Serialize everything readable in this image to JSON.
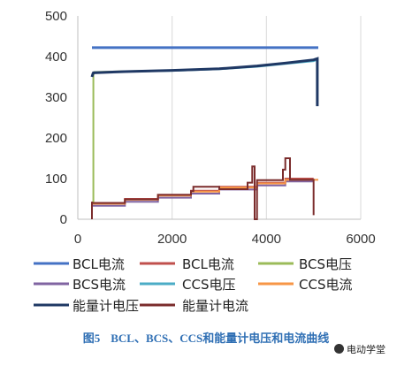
{
  "chart_data": {
    "type": "line",
    "title": "",
    "xlabel": "",
    "ylabel": "",
    "xlim": [
      0,
      6000
    ],
    "ylim": [
      0,
      500
    ],
    "xticks": [
      0,
      2000,
      4000,
      6000
    ],
    "yticks": [
      0,
      100,
      200,
      300,
      400,
      500
    ],
    "grid": "vertical lines",
    "legend_position": "bottom",
    "series": [
      {
        "name": "BCL电流",
        "color": "#4472c4",
        "width": 3,
        "x": [
          300,
          5100
        ],
        "y": [
          422,
          422
        ]
      },
      {
        "name": "BCL电流",
        "color": "#c0504d",
        "width": 2,
        "x": [
          300,
          1000,
          1000,
          1700,
          1700,
          2400,
          2400,
          3000,
          3000,
          3800,
          3800,
          4400,
          4400,
          5000
        ],
        "y": [
          40,
          40,
          50,
          50,
          60,
          60,
          70,
          70,
          80,
          80,
          90,
          90,
          100,
          100
        ]
      },
      {
        "name": "BCS电压",
        "color": "#9bbb59",
        "width": 2,
        "x": [
          330,
          330,
          350,
          1000,
          2000,
          3000,
          3800,
          4400,
          5000,
          5100
        ],
        "y": [
          40,
          355,
          362,
          364,
          366,
          370,
          376,
          383,
          390,
          394
        ]
      },
      {
        "name": "BCS电流",
        "color": "#8064a2",
        "width": 2,
        "x": [
          300,
          1000,
          1000,
          1700,
          1700,
          2400,
          2400,
          3000,
          3000,
          3800,
          3800,
          4400,
          4400,
          5000
        ],
        "y": [
          33,
          33,
          43,
          43,
          53,
          53,
          63,
          63,
          73,
          73,
          83,
          83,
          93,
          93
        ]
      },
      {
        "name": "CCS电压",
        "color": "#4bacc6",
        "width": 2,
        "x": [
          350,
          1000,
          2000,
          3000,
          3800,
          4400,
          5000,
          5100
        ],
        "y": [
          361,
          363,
          365,
          369,
          375,
          382,
          389,
          393
        ]
      },
      {
        "name": "CCS电流",
        "color": "#f79646",
        "width": 2,
        "x": [
          300,
          1000,
          1000,
          1700,
          1700,
          2400,
          2400,
          3000,
          3000,
          3800,
          3800,
          4400,
          4400,
          5100
        ],
        "y": [
          38,
          38,
          48,
          48,
          58,
          58,
          68,
          68,
          78,
          78,
          88,
          88,
          97,
          97
        ]
      },
      {
        "name": "能量计电压",
        "color": "#1f3864",
        "width": 3,
        "x": [
          300,
          320,
          330,
          1000,
          2000,
          3000,
          3800,
          4400,
          5000,
          5080,
          5080
        ],
        "y": [
          350,
          358,
          360,
          363,
          366,
          370,
          377,
          384,
          392,
          395,
          278
        ]
      },
      {
        "name": "能量计电流",
        "color": "#7b2c2c",
        "width": 2,
        "x": [
          300,
          300,
          310,
          1000,
          1000,
          1700,
          1700,
          2400,
          2400,
          2450,
          2450,
          3000,
          3000,
          3600,
          3600,
          3700,
          3700,
          3750,
          3750,
          3800,
          3800,
          4350,
          4350,
          4400,
          4400,
          4500,
          4500,
          5000,
          5000
        ],
        "y": [
          0,
          43,
          40,
          40,
          49,
          49,
          60,
          60,
          69,
          69,
          80,
          80,
          74,
          74,
          90,
          90,
          130,
          130,
          0,
          0,
          96,
          96,
          122,
          122,
          150,
          150,
          97,
          97,
          10
        ]
      }
    ]
  },
  "caption": {
    "figure_number": "图5",
    "text": "BCL、BCS、CCS和能量计电压和电流曲线"
  },
  "watermark": "电动学堂"
}
